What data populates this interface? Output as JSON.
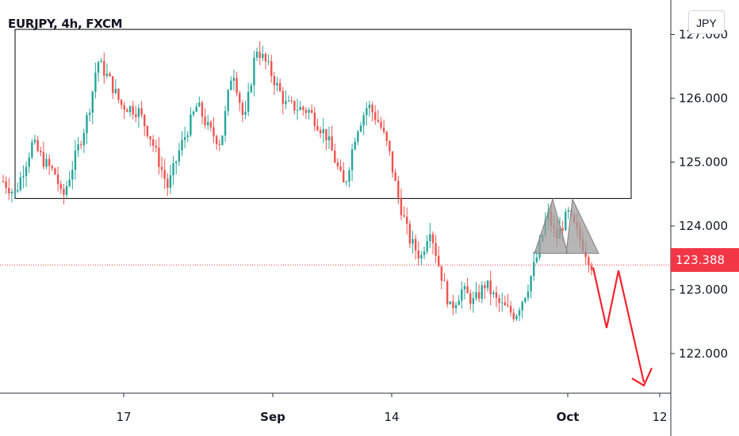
{
  "header": {
    "symbol_title": "EURJPY, 4h, FXCM",
    "currency_label": "JPY"
  },
  "price_badge": "123.388",
  "chart_data": {
    "type": "candlestick",
    "title": "EURJPY, 4h, FXCM",
    "y_axis": {
      "ticks": [
        "127.000",
        "126.000",
        "125.000",
        "124.000",
        "123.000",
        "122.000"
      ],
      "tick_values": [
        127.0,
        126.0,
        125.0,
        124.0,
        123.0,
        122.0
      ],
      "range": [
        121.45,
        127.6
      ]
    },
    "x_axis": {
      "ticks": [
        "17",
        "Sep",
        "14",
        "Oct",
        "12"
      ],
      "bold_ticks": [
        "Sep",
        "Oct"
      ]
    },
    "last_price": 123.388,
    "colors": {
      "up": "#26a69a",
      "down": "#ef5350",
      "projection": "#f5232d",
      "box": "#000000",
      "pattern_fill": "#9e9e9e",
      "price_line": "#f23645"
    },
    "key_points": [
      {
        "x": 0.0,
        "y": 124.7
      },
      {
        "x": 0.02,
        "y": 124.5
      },
      {
        "x": 0.05,
        "y": 125.3
      },
      {
        "x": 0.07,
        "y": 125.0
      },
      {
        "x": 0.09,
        "y": 124.8
      },
      {
        "x": 0.1,
        "y": 124.4
      },
      {
        "x": 0.12,
        "y": 125.0
      },
      {
        "x": 0.14,
        "y": 125.6
      },
      {
        "x": 0.15,
        "y": 126.0
      },
      {
        "x": 0.16,
        "y": 126.6
      },
      {
        "x": 0.18,
        "y": 126.3
      },
      {
        "x": 0.2,
        "y": 125.9
      },
      {
        "x": 0.23,
        "y": 125.8
      },
      {
        "x": 0.25,
        "y": 125.4
      },
      {
        "x": 0.28,
        "y": 124.6
      },
      {
        "x": 0.3,
        "y": 125.2
      },
      {
        "x": 0.33,
        "y": 125.9
      },
      {
        "x": 0.35,
        "y": 125.5
      },
      {
        "x": 0.37,
        "y": 125.3
      },
      {
        "x": 0.39,
        "y": 126.5
      },
      {
        "x": 0.41,
        "y": 125.6
      },
      {
        "x": 0.43,
        "y": 126.8
      },
      {
        "x": 0.45,
        "y": 126.5
      },
      {
        "x": 0.48,
        "y": 125.9
      },
      {
        "x": 0.52,
        "y": 125.8
      },
      {
        "x": 0.55,
        "y": 125.4
      },
      {
        "x": 0.58,
        "y": 124.6
      },
      {
        "x": 0.6,
        "y": 125.5
      },
      {
        "x": 0.62,
        "y": 125.9
      },
      {
        "x": 0.64,
        "y": 125.6
      },
      {
        "x": 0.655,
        "y": 125.2
      },
      {
        "x": 0.67,
        "y": 124.5
      },
      {
        "x": 0.69,
        "y": 123.8
      },
      {
        "x": 0.71,
        "y": 123.5
      },
      {
        "x": 0.725,
        "y": 124.0
      },
      {
        "x": 0.74,
        "y": 123.4
      },
      {
        "x": 0.76,
        "y": 122.7
      },
      {
        "x": 0.78,
        "y": 123.0
      },
      {
        "x": 0.8,
        "y": 122.8
      },
      {
        "x": 0.82,
        "y": 123.1
      },
      {
        "x": 0.84,
        "y": 122.8
      },
      {
        "x": 0.87,
        "y": 122.6
      },
      {
        "x": 0.89,
        "y": 123.0
      },
      {
        "x": 0.91,
        "y": 123.6
      },
      {
        "x": 0.925,
        "y": 124.2
      },
      {
        "x": 0.94,
        "y": 123.8
      },
      {
        "x": 0.96,
        "y": 124.2
      },
      {
        "x": 0.98,
        "y": 123.8
      },
      {
        "x": 1.0,
        "y": 123.39
      }
    ],
    "annotations": {
      "range_box": {
        "top": 127.08,
        "bottom": 124.43
      },
      "double_top": {
        "peaks": [
          124.42,
          124.42
        ],
        "base": 123.57
      },
      "projection_path": [
        123.35,
        122.4,
        123.3,
        121.55
      ],
      "arrow_tip": 121.5
    }
  }
}
